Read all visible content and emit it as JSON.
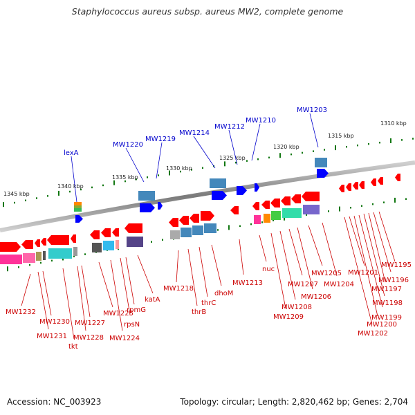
{
  "title": "Staphylococcus aureus subsp. aureus MW2, complete genome",
  "accession_label": "Accession: NC_003923",
  "footer_info": "Topology: circular; Length: 2,820,462 bp; Genes: 2,704",
  "colors": {
    "forward_gene": "#ff0000",
    "reverse_gene": "#0000ff",
    "top_label": "#0000cc",
    "bottom_label": "#cc0000",
    "backbone": "#808080",
    "ticks": "#117711"
  },
  "scale_labels": [
    "1345 kbp",
    "1340 kbp",
    "1335 kbp",
    "1330 kbp",
    "1325 kbp",
    "1320 kbp",
    "1315 kbp",
    "1310 kbp"
  ],
  "top_labels": [
    "lexA",
    "MW1220",
    "MW1219",
    "MW1214",
    "MW1212",
    "MW1210",
    "MW1203"
  ],
  "bottom_labels": [
    "MW1232",
    "MW1230",
    "MW1231",
    "tkt",
    "MW1228",
    "MW1227",
    "MW1225",
    "MW1224",
    "rpsN",
    "rpmG",
    "katA",
    "MW1218",
    "thrB",
    "thrC",
    "dhoM",
    "MW1213",
    "nuc",
    "MW1209",
    "MW1208",
    "MW1207",
    "MW1206",
    "MW1205",
    "MW1204",
    "MW1202",
    "MW1201",
    "MW1200",
    "MW1199",
    "MW1198",
    "MW1197",
    "MW1196",
    "MW1195"
  ]
}
